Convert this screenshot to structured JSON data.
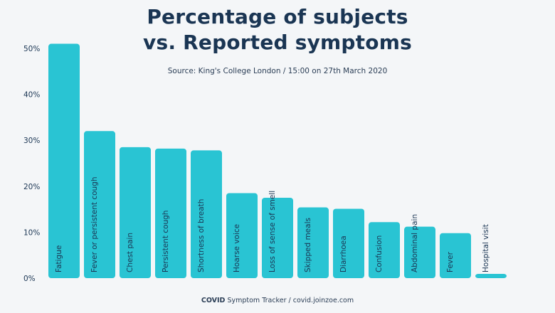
{
  "title_line1": "Percentage of subjects",
  "title_line2": "vs. Reported symptoms",
  "subtitle": "Source: King's College London / 15:00 on 27th March 2020",
  "footer": {
    "brand": "COVID",
    "text": " Symptom Tracker / covid.joinzoe.com"
  },
  "colors": {
    "bar": "#29c4d3",
    "text": "#1a3553",
    "label": "#1a3553"
  },
  "chart_data": {
    "type": "bar",
    "title": "Percentage of subjects vs. Reported symptoms",
    "categories": [
      "Fatigue",
      "Fever or persistent cough",
      "Chest pain",
      "Persistent cough",
      "Shortness of breath",
      "Hoarse voice",
      "Loss of sense of smell",
      "Skipped meals",
      "Diarrhoea",
      "Confusion",
      "Abdominal pain",
      "Fever",
      "Hospital visit"
    ],
    "values": [
      51,
      32,
      28.5,
      28.2,
      27.8,
      18.5,
      17.5,
      15.4,
      15.1,
      12.2,
      11.2,
      9.8,
      0.8
    ],
    "ylim": [
      0,
      50
    ],
    "yticks": [
      "0%",
      "10%",
      "20%",
      "30%",
      "40%",
      "50%"
    ],
    "grid": false,
    "xlabel": "",
    "ylabel": ""
  }
}
